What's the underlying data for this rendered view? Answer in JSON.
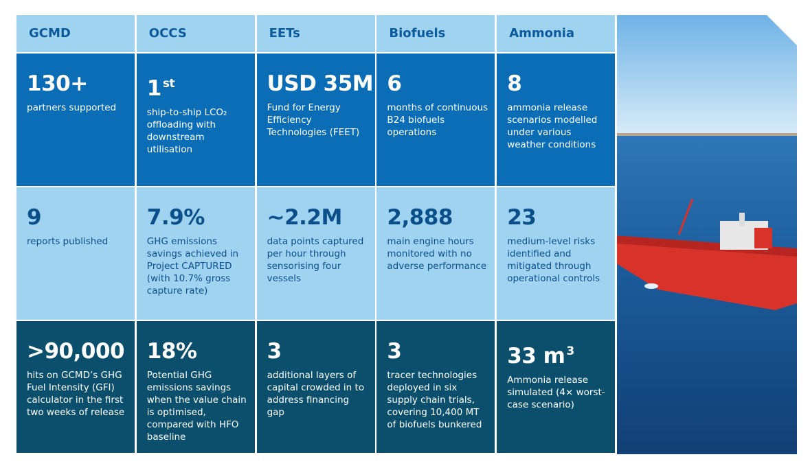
{
  "columns": [
    {
      "header": "GCMD",
      "cells": [
        {
          "stat": "130+",
          "desc": "partners supported"
        },
        {
          "stat": "9",
          "desc": "reports published"
        },
        {
          "stat": ">90,000",
          "desc": "hits on GCMD’s GHG Fuel Intensity (GFI) calculator in the first two weeks of release"
        }
      ]
    },
    {
      "header": "OCCS",
      "cells": [
        {
          "stat": "1",
          "stat_sup": "st",
          "desc": "ship-to-ship LCO₂ offloading with downstream utilisation"
        },
        {
          "stat": "7.9%",
          "desc": "GHG emissions savings achieved in Project CAPTURED (with 10.7% gross capture rate)"
        },
        {
          "stat": "18%",
          "desc": "Potential GHG emissions savings when the value chain is optimised, compared with HFO baseline"
        }
      ]
    },
    {
      "header": "EETs",
      "cells": [
        {
          "stat": "USD 35M",
          "desc": "Fund for Energy Efficiency Technologies (FEET)"
        },
        {
          "stat": "~2.2M",
          "desc": "data points captured per hour through sensorising four vessels"
        },
        {
          "stat": "3",
          "desc": "additional layers of capital crowded in to address financing gap"
        }
      ]
    },
    {
      "header": "Biofuels",
      "cells": [
        {
          "stat": "6",
          "desc": "months of continuous B24 biofuels operations"
        },
        {
          "stat": "2,888",
          "desc": "main engine hours monitored with no adverse performance"
        },
        {
          "stat": "3",
          "desc": "tracer technologies deployed in six supply chain trials, covering 10,400 MT of biofuels bunkered"
        }
      ]
    },
    {
      "header": "Ammonia",
      "cells": [
        {
          "stat": "8",
          "desc": "ammonia release scenarios modelled under various weather conditions"
        },
        {
          "stat": "23",
          "desc": "medium-level risks identified and mitigated through operational controls"
        },
        {
          "stat": "33 m",
          "stat_sup": "3",
          "desc": "Ammonia release simulated (4× worst-case scenario)"
        }
      ]
    }
  ]
}
